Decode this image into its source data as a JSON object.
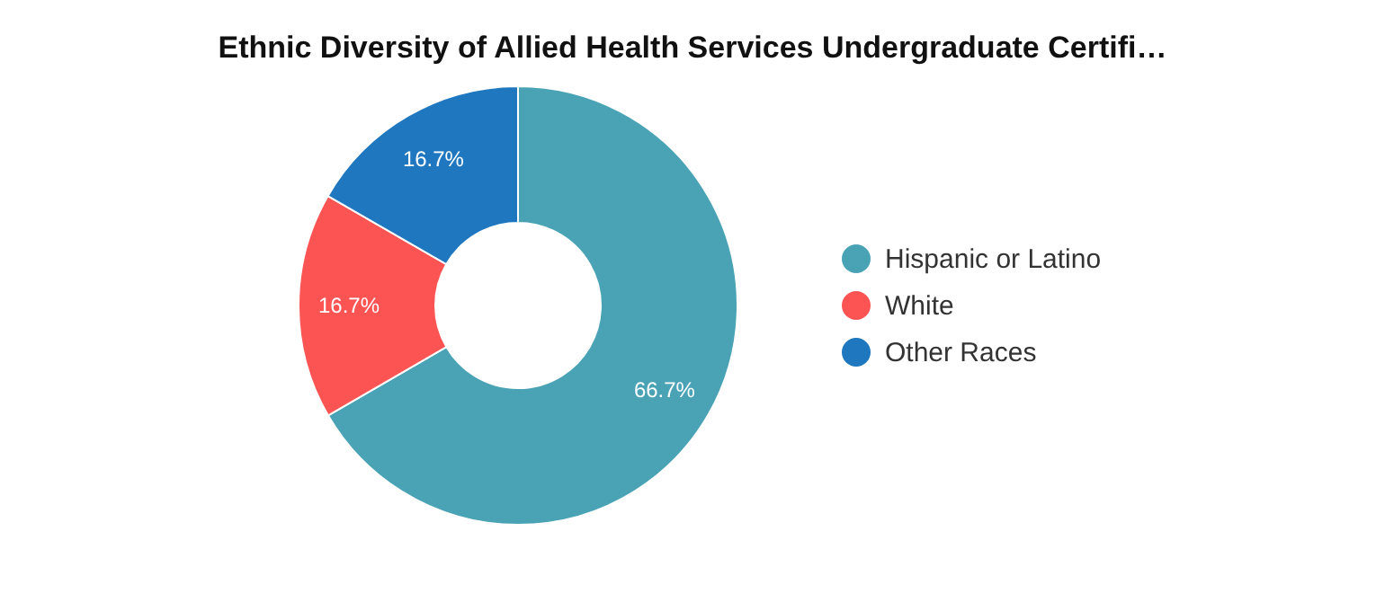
{
  "chart_data": {
    "type": "donut",
    "title": "Ethnic Diversity of Allied Health Services Undergraduate Certifi…",
    "categories": [
      "Hispanic or Latino",
      "White",
      "Other Races"
    ],
    "values": [
      66.7,
      16.7,
      16.7
    ],
    "colors": [
      "#4aa3b5",
      "#fc5353",
      "#1f77c0"
    ],
    "value_labels": [
      "66.7%",
      "16.7%",
      "16.7%"
    ],
    "legend": "right"
  }
}
